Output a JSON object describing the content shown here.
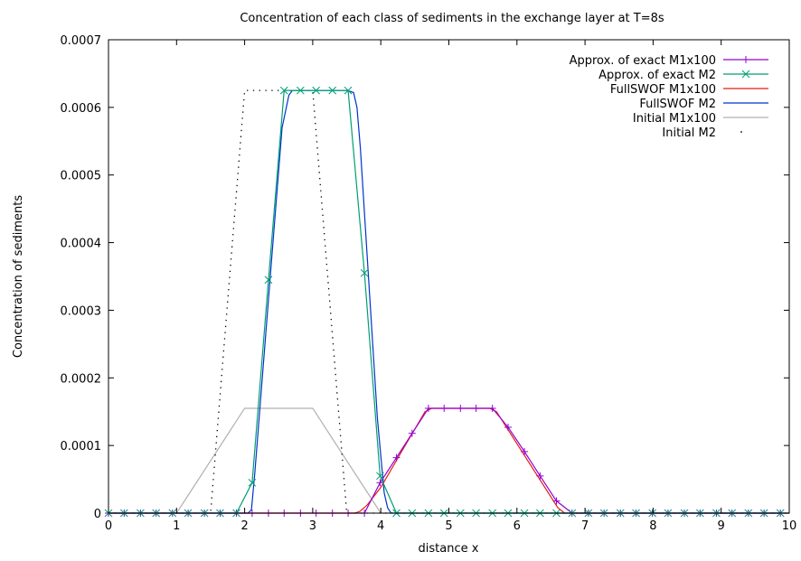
{
  "chart_data": {
    "type": "line",
    "title": "Concentration of each class of sediments in the exchange layer at T=8s",
    "xlabel": "distance x",
    "ylabel": "Concentration of sediments",
    "xlim": [
      0,
      10
    ],
    "ylim": [
      0,
      0.0007
    ],
    "x_ticks": [
      "0",
      "1",
      "2",
      "3",
      "4",
      "5",
      "6",
      "7",
      "8",
      "9",
      "10"
    ],
    "y_ticks": [
      "0",
      "0.0001",
      "0.0002",
      "0.0003",
      "0.0004",
      "0.0005",
      "0.0006",
      "0.0007"
    ],
    "grid": false,
    "legend_position": "top-right",
    "series": [
      {
        "name": "Approx. of exact M1x100",
        "style": "line+plus",
        "color": "#9400d3",
        "x": [
          0.0,
          0.23,
          0.47,
          0.7,
          0.94,
          1.17,
          1.41,
          1.64,
          1.88,
          2.11,
          2.35,
          2.58,
          2.82,
          3.05,
          3.29,
          3.52,
          3.76,
          3.99,
          4.23,
          4.46,
          4.7,
          4.93,
          5.17,
          5.4,
          5.64,
          5.87,
          6.11,
          6.34,
          6.58,
          6.81,
          7.05,
          7.28,
          7.52,
          7.75,
          7.99,
          8.22,
          8.46,
          8.69,
          8.93,
          9.16,
          9.4,
          9.63,
          9.87
        ],
        "values": [
          0,
          0,
          0,
          0,
          0,
          0,
          0,
          0,
          0,
          0,
          0,
          0,
          0,
          0,
          0,
          0,
          0,
          4.5e-05,
          8.2e-05,
          0.000118,
          0.000155,
          0.000155,
          0.000155,
          0.000155,
          0.000155,
          0.000127,
          9.1e-05,
          5.5e-05,
          1.8e-05,
          0,
          0,
          0,
          0,
          0,
          0,
          0,
          0,
          0,
          0,
          0,
          0,
          0,
          0
        ]
      },
      {
        "name": "Approx. of exact M2",
        "style": "line+cross",
        "color": "#009e73",
        "x": [
          0.0,
          0.23,
          0.47,
          0.7,
          0.94,
          1.17,
          1.41,
          1.64,
          1.88,
          2.11,
          2.35,
          2.58,
          2.82,
          3.05,
          3.29,
          3.52,
          3.76,
          3.99,
          4.23,
          4.46,
          4.7,
          4.93,
          5.17,
          5.4,
          5.64,
          5.87,
          6.11,
          6.34,
          6.58,
          6.81,
          7.05,
          7.28,
          7.52,
          7.75,
          7.99,
          8.22,
          8.46,
          8.69,
          8.93,
          9.16,
          9.4,
          9.63,
          9.87
        ],
        "values": [
          0,
          0,
          0,
          0,
          0,
          0,
          0,
          0,
          0,
          4.5e-05,
          0.000345,
          0.000625,
          0.000625,
          0.000625,
          0.000625,
          0.000625,
          0.000355,
          5.5e-05,
          0,
          0,
          0,
          0,
          0,
          0,
          0,
          0,
          0,
          0,
          0,
          0,
          0,
          0,
          0,
          0,
          0,
          0,
          0,
          0,
          0,
          0,
          0,
          0,
          0
        ]
      },
      {
        "name": "FullSWOF M1x100",
        "style": "line",
        "color": "#e51e10",
        "x": [
          0,
          3.62,
          3.7,
          3.8,
          4.0,
          4.3,
          4.65,
          4.75,
          5.6,
          5.7,
          6.6,
          6.7,
          10
        ],
        "values": [
          0,
          0,
          3e-06,
          1.2e-05,
          3.8e-05,
          9e-05,
          0.00015,
          0.000155,
          0.000155,
          0.00015,
          8e-06,
          0,
          0
        ]
      },
      {
        "name": "FullSWOF M2",
        "style": "line",
        "color": "#0033cc",
        "x": [
          0,
          2.05,
          2.1,
          2.15,
          2.4,
          2.55,
          2.65,
          2.7,
          3.5,
          3.6,
          3.65,
          3.7,
          3.95,
          4.05,
          4.1,
          4.15,
          10
        ],
        "values": [
          0,
          0,
          5e-06,
          6e-05,
          0.00038,
          0.00057,
          0.000618,
          0.000625,
          0.000625,
          0.000622,
          0.0006,
          0.00054,
          0.00014,
          3e-05,
          8e-06,
          0,
          0
        ]
      },
      {
        "name": "Initial M1x100",
        "style": "line",
        "color": "#b0b0b0",
        "x": [
          0,
          1,
          2,
          3,
          4,
          10
        ],
        "values": [
          0,
          0,
          0.000155,
          0.000155,
          0,
          0
        ]
      },
      {
        "name": "Initial M2",
        "style": "dots",
        "color": "#000000",
        "x": [
          0,
          1.5,
          2,
          3,
          3.5,
          10
        ],
        "values": [
          0,
          0,
          0.000625,
          0.000625,
          0,
          0
        ]
      }
    ]
  }
}
